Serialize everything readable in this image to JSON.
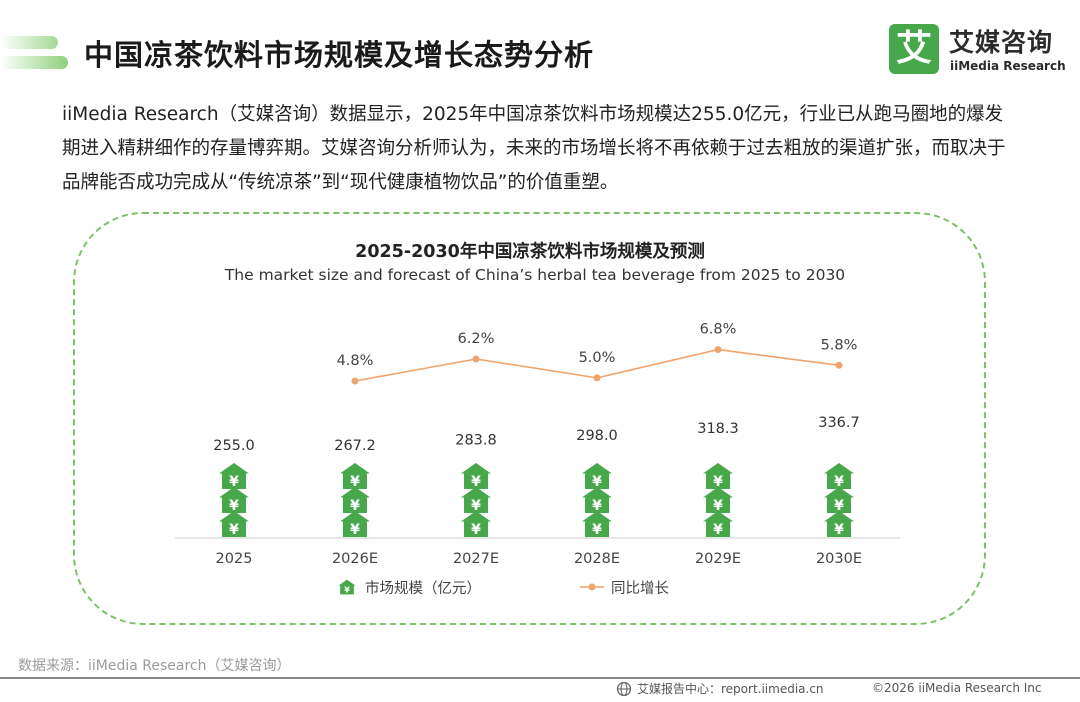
{
  "page": {
    "title": "中国凉茶饮料市场规模及增长态势分析",
    "intro": "iiMedia Research（艾媒咨询）数据显示，2025年中国凉茶饮料市场规模达255.0亿元，行业已从跑马圈地的爆发期进入精耕细作的存量博弈期。艾媒咨询分析师认为，未来的市场增长将不再依赖于过去粗放的渠道扩张，而取决于品牌能否成功完成从“传统凉茶”到“现代健康植物饮品”的价值重塑。"
  },
  "logo": {
    "mark": "艾",
    "name_cn": "艾媒咨询",
    "name_en": "iiMedia Research"
  },
  "colors": {
    "brand_green": "#46a84a",
    "line_orange": "#f0a46a",
    "dashed_border": "#7cc06a"
  },
  "chart_data": {
    "type": "bar",
    "title": "2025-2030年中国凉茶饮料市场规模及预测",
    "subtitle": "The market size and forecast of China’s herbal tea beverage from 2025 to 2030",
    "categories": [
      "2025",
      "2026E",
      "2027E",
      "2028E",
      "2029E",
      "2030E"
    ],
    "series": [
      {
        "name": "市场规模（亿元）",
        "kind": "pictograph-bar",
        "values": [
          255.0,
          267.2,
          283.8,
          298.0,
          318.3,
          336.7
        ],
        "labels": [
          "255.0",
          "267.2",
          "283.8",
          "298.0",
          "318.3",
          "336.7"
        ],
        "icon": "green-house-yuan-icon"
      },
      {
        "name": "同比增长",
        "kind": "line",
        "values": [
          null,
          4.8,
          6.2,
          5.0,
          6.8,
          5.8
        ],
        "labels": [
          "",
          "4.8%",
          "6.2%",
          "5.0%",
          "6.8%",
          "5.8%"
        ]
      }
    ],
    "legend": {
      "position": "bottom",
      "items": [
        "市场规模（亿元）",
        "同比增长"
      ]
    },
    "grid": false
  },
  "footer": {
    "source": "数据来源：iiMedia Research（艾媒咨询）",
    "center_text": "艾媒报告中心：report.iimedia.cn",
    "copyright": "©2026  iiMedia Research  Inc"
  }
}
